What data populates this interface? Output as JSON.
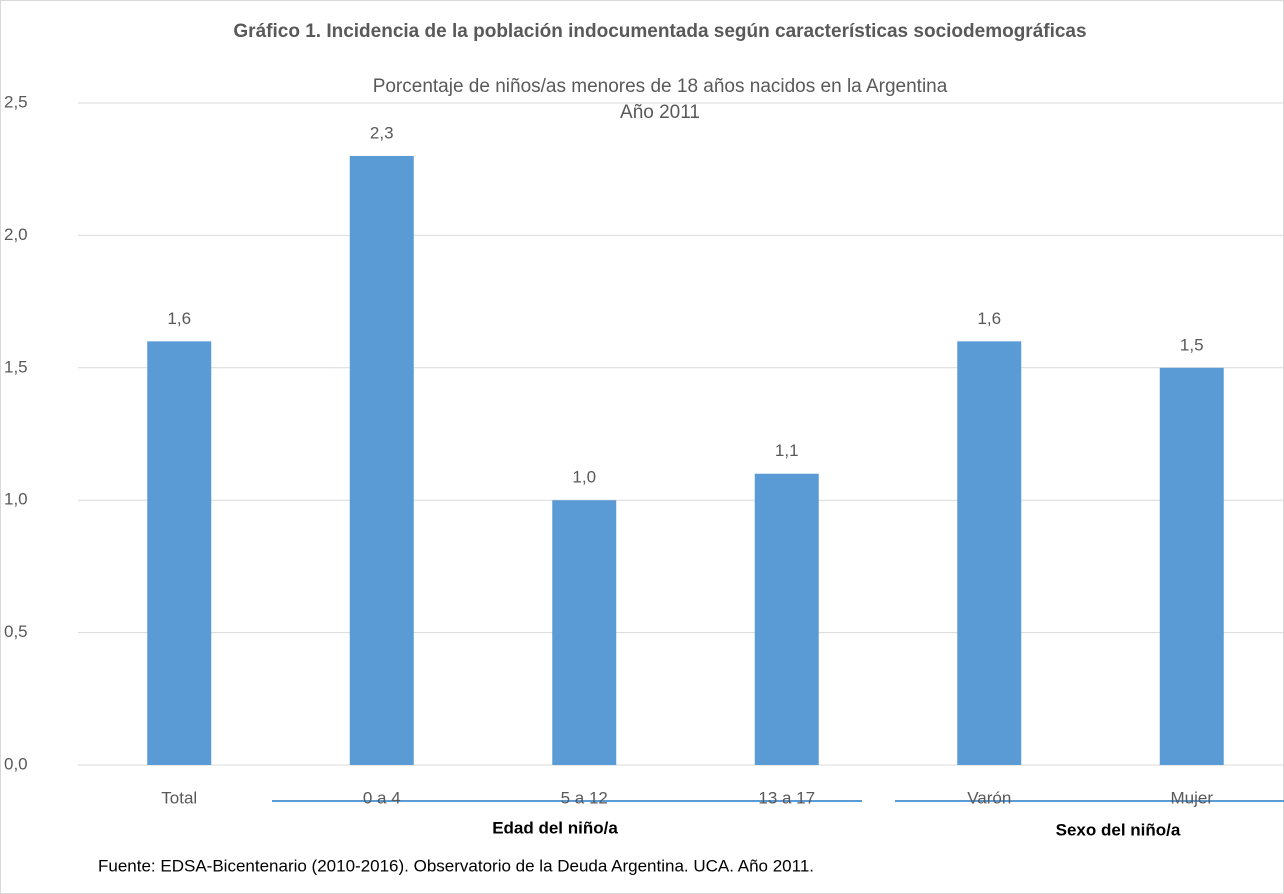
{
  "chart_data": {
    "type": "bar",
    "title": "Gráfico 1. Incidencia de la población indocumentada según características sociodemográficas",
    "subtitle": [
      "Porcentaje de niños/as menores de 18 años nacidos en la Argentina",
      "Año 2011"
    ],
    "categories": [
      "Total",
      "0 a 4",
      "5 a 12",
      "13 a 17",
      "Varón",
      "Mujer"
    ],
    "values": [
      1.6,
      2.3,
      1.0,
      1.1,
      1.6,
      1.5
    ],
    "value_labels": [
      "1,6",
      "2,3",
      "1,0",
      "1,1",
      "1,6",
      "1,5"
    ],
    "color": "#5b9bd5",
    "ylim": [
      0,
      2.5
    ],
    "yticks": [
      {
        "value": 0,
        "label": "0,0"
      },
      {
        "value": 0.5,
        "label": "0,5"
      },
      {
        "value": 1,
        "label": "1,0"
      },
      {
        "value": 1.5,
        "label": "1,5"
      },
      {
        "value": 2,
        "label": "2,0"
      },
      {
        "value": 2.5,
        "label": "2,5"
      }
    ],
    "grid": true,
    "annotations": [
      "Edad del niño/a",
      "Sexo del niño/a"
    ],
    "source": "Fuente: EDSA-Bicentenario (2010-2016). Observatorio de la Deuda Argentina. UCA. Año 2011."
  }
}
